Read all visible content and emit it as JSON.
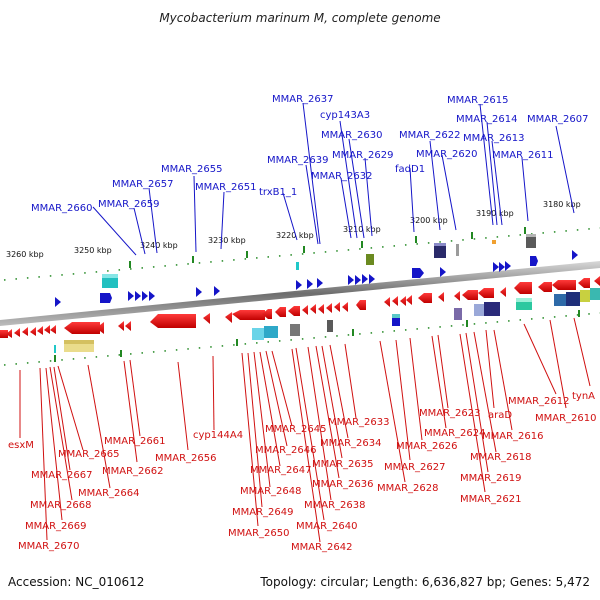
{
  "header": {
    "title": "Mycobacterium marinum M, complete genome"
  },
  "footer": {
    "accession": "Accession: NC_010612",
    "summary": "Topology: circular; Length: 6,636,827 bp; Genes: 5,472"
  },
  "colors": {
    "plus_strand": "#1515c8",
    "minus_strand": "#d01010",
    "backbone": "#888888",
    "tick": "#228822"
  },
  "kbp_labels": [
    "3260 kbp",
    "3250 kbp",
    "3240 kbp",
    "3230 kbp",
    "3220 kbp",
    "3210 kbp",
    "3200 kbp",
    "3190 kbp",
    "3180 kbp"
  ],
  "top_labels": [
    "MMAR_2660",
    "MMAR_2659",
    "MMAR_2657",
    "MMAR_2655",
    "MMAR_2651",
    "trxB1_1",
    "MMAR_2639",
    "MMAR_2637",
    "MMAR_2632",
    "cyp143A3",
    "MMAR_2630",
    "MMAR_2629",
    "fadD1",
    "MMAR_2622",
    "MMAR_2620",
    "MMAR_2615",
    "MMAR_2614",
    "MMAR_2613",
    "MMAR_2611",
    "MMAR_2607"
  ],
  "bottom_labels": [
    "esxM",
    "MMAR_2670",
    "MMAR_2669",
    "MMAR_2668",
    "MMAR_2667",
    "MMAR_2665",
    "MMAR_2664",
    "MMAR_2662",
    "MMAR_2661",
    "MMAR_2656",
    "cyp144A4",
    "MMAR_2650",
    "MMAR_2649",
    "MMAR_2648",
    "MMAR_2647",
    "MMAR_2646",
    "MMAR_2645",
    "MMAR_2642",
    "MMAR_2640",
    "MMAR_2638",
    "MMAR_2636",
    "MMAR_2635",
    "MMAR_2634",
    "MMAR_2633",
    "MMAR_2628",
    "MMAR_2627",
    "MMAR_2626",
    "MMAR_2624",
    "MMAR_2623",
    "MMAR_2621",
    "MMAR_2619",
    "MMAR_2618",
    "araD",
    "MMAR_2616",
    "MMAR_2612",
    "MMAR_2610",
    "tynA"
  ]
}
